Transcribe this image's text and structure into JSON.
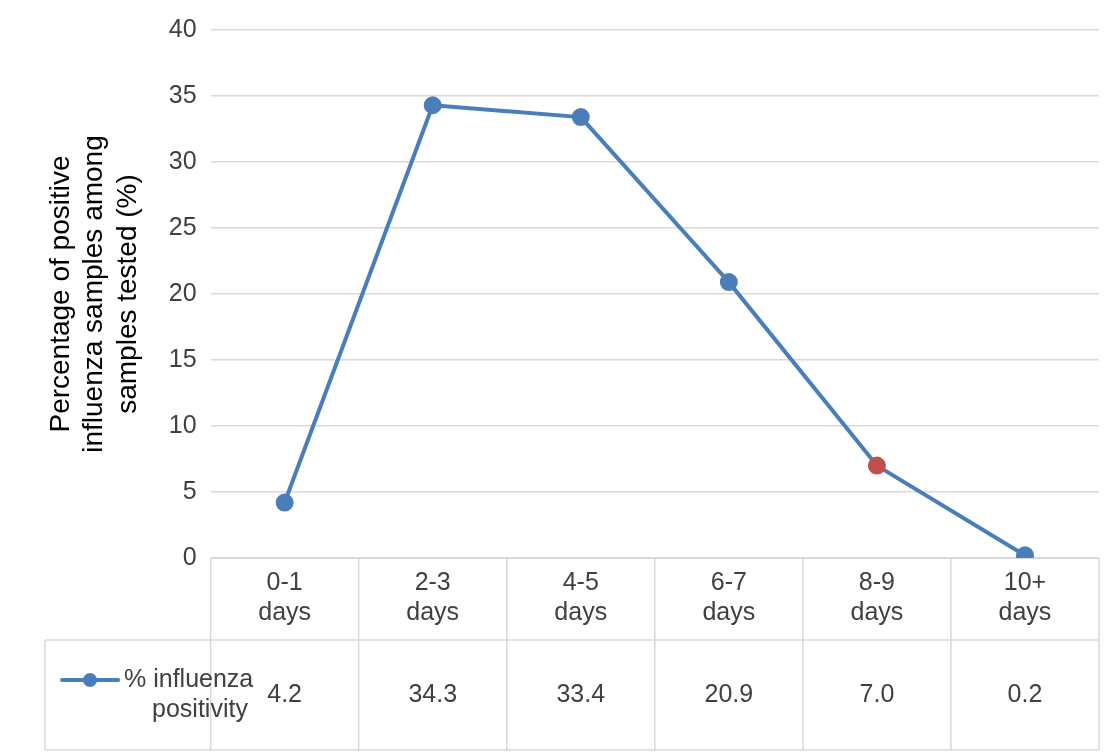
{
  "chart_data": {
    "type": "line",
    "ylabel": "Percentage of positive influenza samples among samples tested (%)",
    "categories": [
      "0-1 days",
      "2-3 days",
      "4-5 days",
      "6-7 days",
      "8-9 days",
      "10+ days"
    ],
    "series": [
      {
        "name": "% influenza positivity",
        "color": "#4a7ebb",
        "colors": [
          "#4a7ebb",
          "#4a7ebb",
          "#4a7ebb",
          "#4a7ebb",
          "#c0504d",
          "#4a7ebb"
        ],
        "values": [
          4.2,
          34.3,
          33.4,
          20.9,
          7.0,
          0.2
        ],
        "value_labels": [
          "4.2",
          "34.3",
          "33.4",
          "20.9",
          "7.0",
          "0.2"
        ]
      }
    ],
    "ylim": [
      0,
      40
    ],
    "yticks": [
      0,
      5,
      10,
      15,
      20,
      25,
      30,
      35,
      40
    ],
    "grid": "y",
    "legend": "bottom left",
    "marker": "circle",
    "line_style": "solid"
  }
}
